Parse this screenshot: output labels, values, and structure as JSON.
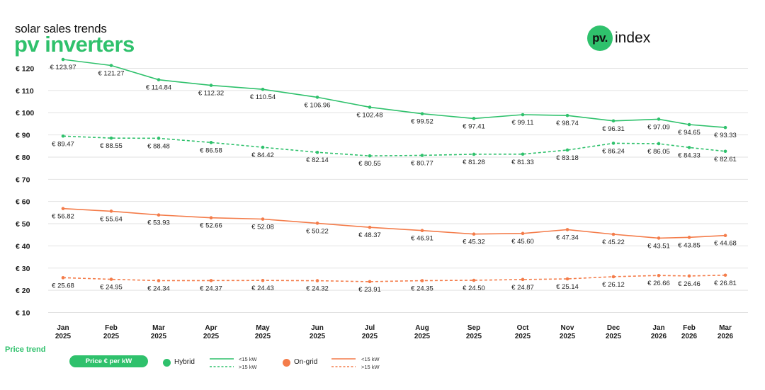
{
  "header": {
    "kicker": "solar sales trends",
    "title": "pv inverters",
    "logo_badge": "pv.",
    "logo_text": "index"
  },
  "legend": {
    "section_label": "Price trend",
    "unit_pill": "Price € per kW",
    "groups": [
      {
        "name": "Hybrid",
        "color": "#2fc16c",
        "solid_label": "<15 kW",
        "dashed_label": ">15 kW"
      },
      {
        "name": "On-grid",
        "color": "#f47c4a",
        "solid_label": "<15 kW",
        "dashed_label": ">15 kW"
      }
    ]
  },
  "chart_data": {
    "type": "line",
    "categories": [
      [
        "Jan",
        "2025"
      ],
      [
        "Feb",
        "2025"
      ],
      [
        "Mar",
        "2025"
      ],
      [
        "Apr",
        "2025"
      ],
      [
        "May",
        "2025"
      ],
      [
        "Jun",
        "2025"
      ],
      [
        "Jul",
        "2025"
      ],
      [
        "Aug",
        "2025"
      ],
      [
        "Sep",
        "2025"
      ],
      [
        "Oct",
        "2025"
      ],
      [
        "Nov",
        "2025"
      ],
      [
        "Dec",
        "2025"
      ],
      [
        "Jan",
        "2026"
      ],
      [
        "Feb",
        "2026"
      ],
      [
        "Mar",
        "2026"
      ]
    ],
    "y_ticks": [
      "€ 120",
      "€ 110",
      "€ 100",
      "€ 90",
      "€ 80",
      "€ 70",
      "€ 60",
      "€ 50",
      "€ 40",
      "€ 30",
      "€ 20",
      "€ 10"
    ],
    "ylim": [
      10,
      120
    ],
    "grid": true,
    "series": [
      {
        "name": "Hybrid <15 kW",
        "color": "#2fc16c",
        "dashed": false,
        "label_pos": "below",
        "values": [
          123.97,
          121.27,
          114.84,
          112.32,
          110.54,
          106.96,
          102.48,
          99.52,
          97.41,
          99.11,
          98.74,
          96.31,
          97.09,
          94.65,
          93.33
        ],
        "labels": [
          "€ 123.97",
          "€ 121.27",
          "€ 114.84",
          "€ 112.32",
          "€ 110.54",
          "€ 106.96",
          "€ 102.48",
          "€ 99.52",
          "€ 97.41",
          "€ 99.11",
          "€ 98.74",
          "€ 96.31",
          "€ 97.09",
          "€ 94.65",
          "€ 93.33"
        ]
      },
      {
        "name": "Hybrid >15 kW",
        "color": "#2fc16c",
        "dashed": true,
        "label_pos": "below",
        "values": [
          89.47,
          88.55,
          88.48,
          86.58,
          84.42,
          82.14,
          80.55,
          80.77,
          81.28,
          81.33,
          83.18,
          86.24,
          86.05,
          84.33,
          82.61
        ],
        "labels": [
          "€ 89.47",
          "€ 88.55",
          "€ 88.48",
          "€ 86.58",
          "€ 84.42",
          "€ 82.14",
          "€ 80.55",
          "€ 80.77",
          "€ 81.28",
          "€ 81.33",
          "€ 83.18",
          "€ 86.24",
          "€ 86.05",
          "€ 84.33",
          "€ 82.61"
        ]
      },
      {
        "name": "On-grid <15 kW",
        "color": "#f47c4a",
        "dashed": false,
        "label_pos": "below",
        "values": [
          56.82,
          55.64,
          53.93,
          52.66,
          52.08,
          50.22,
          48.37,
          46.91,
          45.32,
          45.6,
          47.34,
          45.22,
          43.51,
          43.85,
          44.68
        ],
        "labels": [
          "€ 56.82",
          "€ 55.64",
          "€ 53.93",
          "€ 52.66",
          "€ 52.08",
          "€ 50.22",
          "€ 48.37",
          "€ 46.91",
          "€ 45.32",
          "€ 45.60",
          "€ 47.34",
          "€ 45.22",
          "€ 43.51",
          "€ 43.85",
          "€ 44.68"
        ]
      },
      {
        "name": "On-grid >15 kW",
        "color": "#f47c4a",
        "dashed": true,
        "label_pos": "below",
        "values": [
          25.68,
          24.95,
          24.34,
          24.37,
          24.43,
          24.32,
          23.91,
          24.35,
          24.5,
          24.87,
          25.14,
          26.12,
          26.66,
          26.46,
          26.81
        ],
        "labels": [
          "€ 25.68",
          "€ 24.95",
          "€ 24.34",
          "€ 24.37",
          "€ 24.43",
          "€ 24.32",
          "€ 23.91",
          "€ 24.35",
          "€ 24.50",
          "€ 24.87",
          "€ 25.14",
          "€ 26.12",
          "€ 26.66",
          "€ 26.46",
          "€ 26.81"
        ]
      }
    ]
  }
}
